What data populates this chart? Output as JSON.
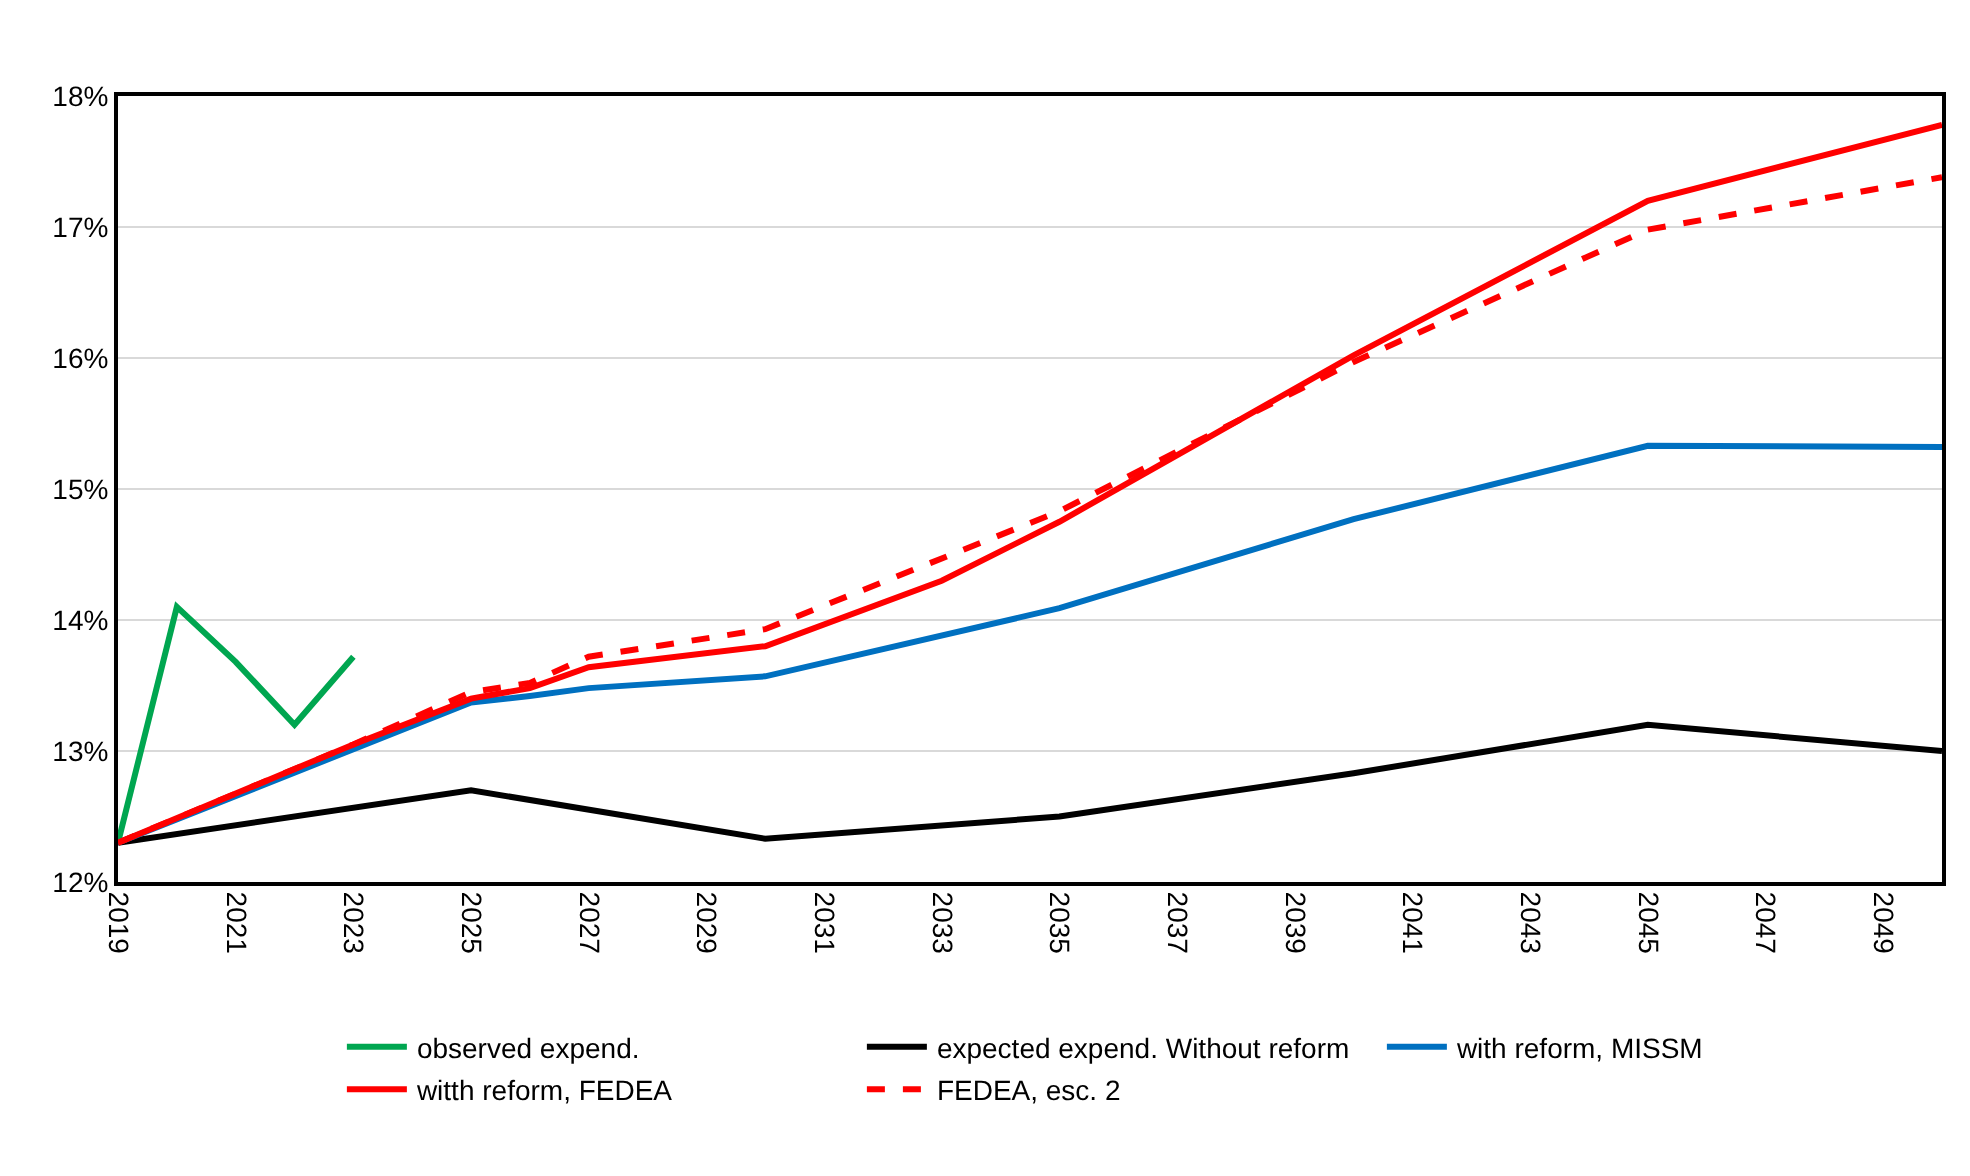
{
  "chart_data": {
    "type": "line",
    "xlim": [
      2019,
      2050
    ],
    "xticks": [
      2019,
      2021,
      2023,
      2025,
      2027,
      2029,
      2031,
      2033,
      2035,
      2037,
      2039,
      2041,
      2043,
      2045,
      2047,
      2049
    ],
    "ylim": [
      12,
      18
    ],
    "yticks": [
      {
        "value": 12,
        "label": "12%"
      },
      {
        "value": 13,
        "label": "13%"
      },
      {
        "value": 14,
        "label": "14%"
      },
      {
        "value": 15,
        "label": "15%"
      },
      {
        "value": 16,
        "label": "16%"
      },
      {
        "value": 17,
        "label": "17%"
      },
      {
        "value": 18,
        "label": "18%"
      }
    ],
    "grid": "y",
    "legend": "bottom",
    "marker": "none",
    "series": [
      {
        "name": "observed expend.",
        "color": "#00a650",
        "x": [
          2019,
          2020,
          2021,
          2022,
          2023
        ],
        "values": [
          12.3,
          14.1,
          13.68,
          13.2,
          13.72
        ]
      },
      {
        "name": "expected expend. Without reform",
        "color": "#000000",
        "x": [
          2019,
          2025,
          2030,
          2035,
          2040,
          2045,
          2050
        ],
        "values": [
          12.3,
          12.7,
          12.33,
          12.5,
          12.83,
          13.2,
          13.0
        ]
      },
      {
        "name": "with reform, MISSM",
        "color": "#0070c0",
        "x": [
          2019,
          2025,
          2026,
          2027,
          2030,
          2035,
          2040,
          2045,
          2050
        ],
        "values": [
          12.3,
          13.37,
          13.42,
          13.48,
          13.57,
          14.09,
          14.77,
          15.33,
          15.32
        ]
      },
      {
        "name": "witth reform, FEDEA",
        "color": "#ff0000",
        "x": [
          2019,
          2023,
          2025,
          2026,
          2027,
          2030,
          2033,
          2035,
          2040,
          2045,
          2050
        ],
        "values": [
          12.3,
          13.05,
          13.4,
          13.48,
          13.64,
          13.8,
          14.3,
          14.75,
          16.02,
          17.2,
          17.78
        ]
      },
      {
        "name": "FEDEA, esc. 2",
        "color": "#ff0000",
        "line_style": "dashed",
        "x": [
          2019,
          2023,
          2025,
          2026,
          2027,
          2030,
          2035,
          2040,
          2045,
          2050
        ],
        "values": [
          12.3,
          13.05,
          13.45,
          13.52,
          13.72,
          13.93,
          14.83,
          15.97,
          16.98,
          17.38
        ]
      }
    ]
  }
}
